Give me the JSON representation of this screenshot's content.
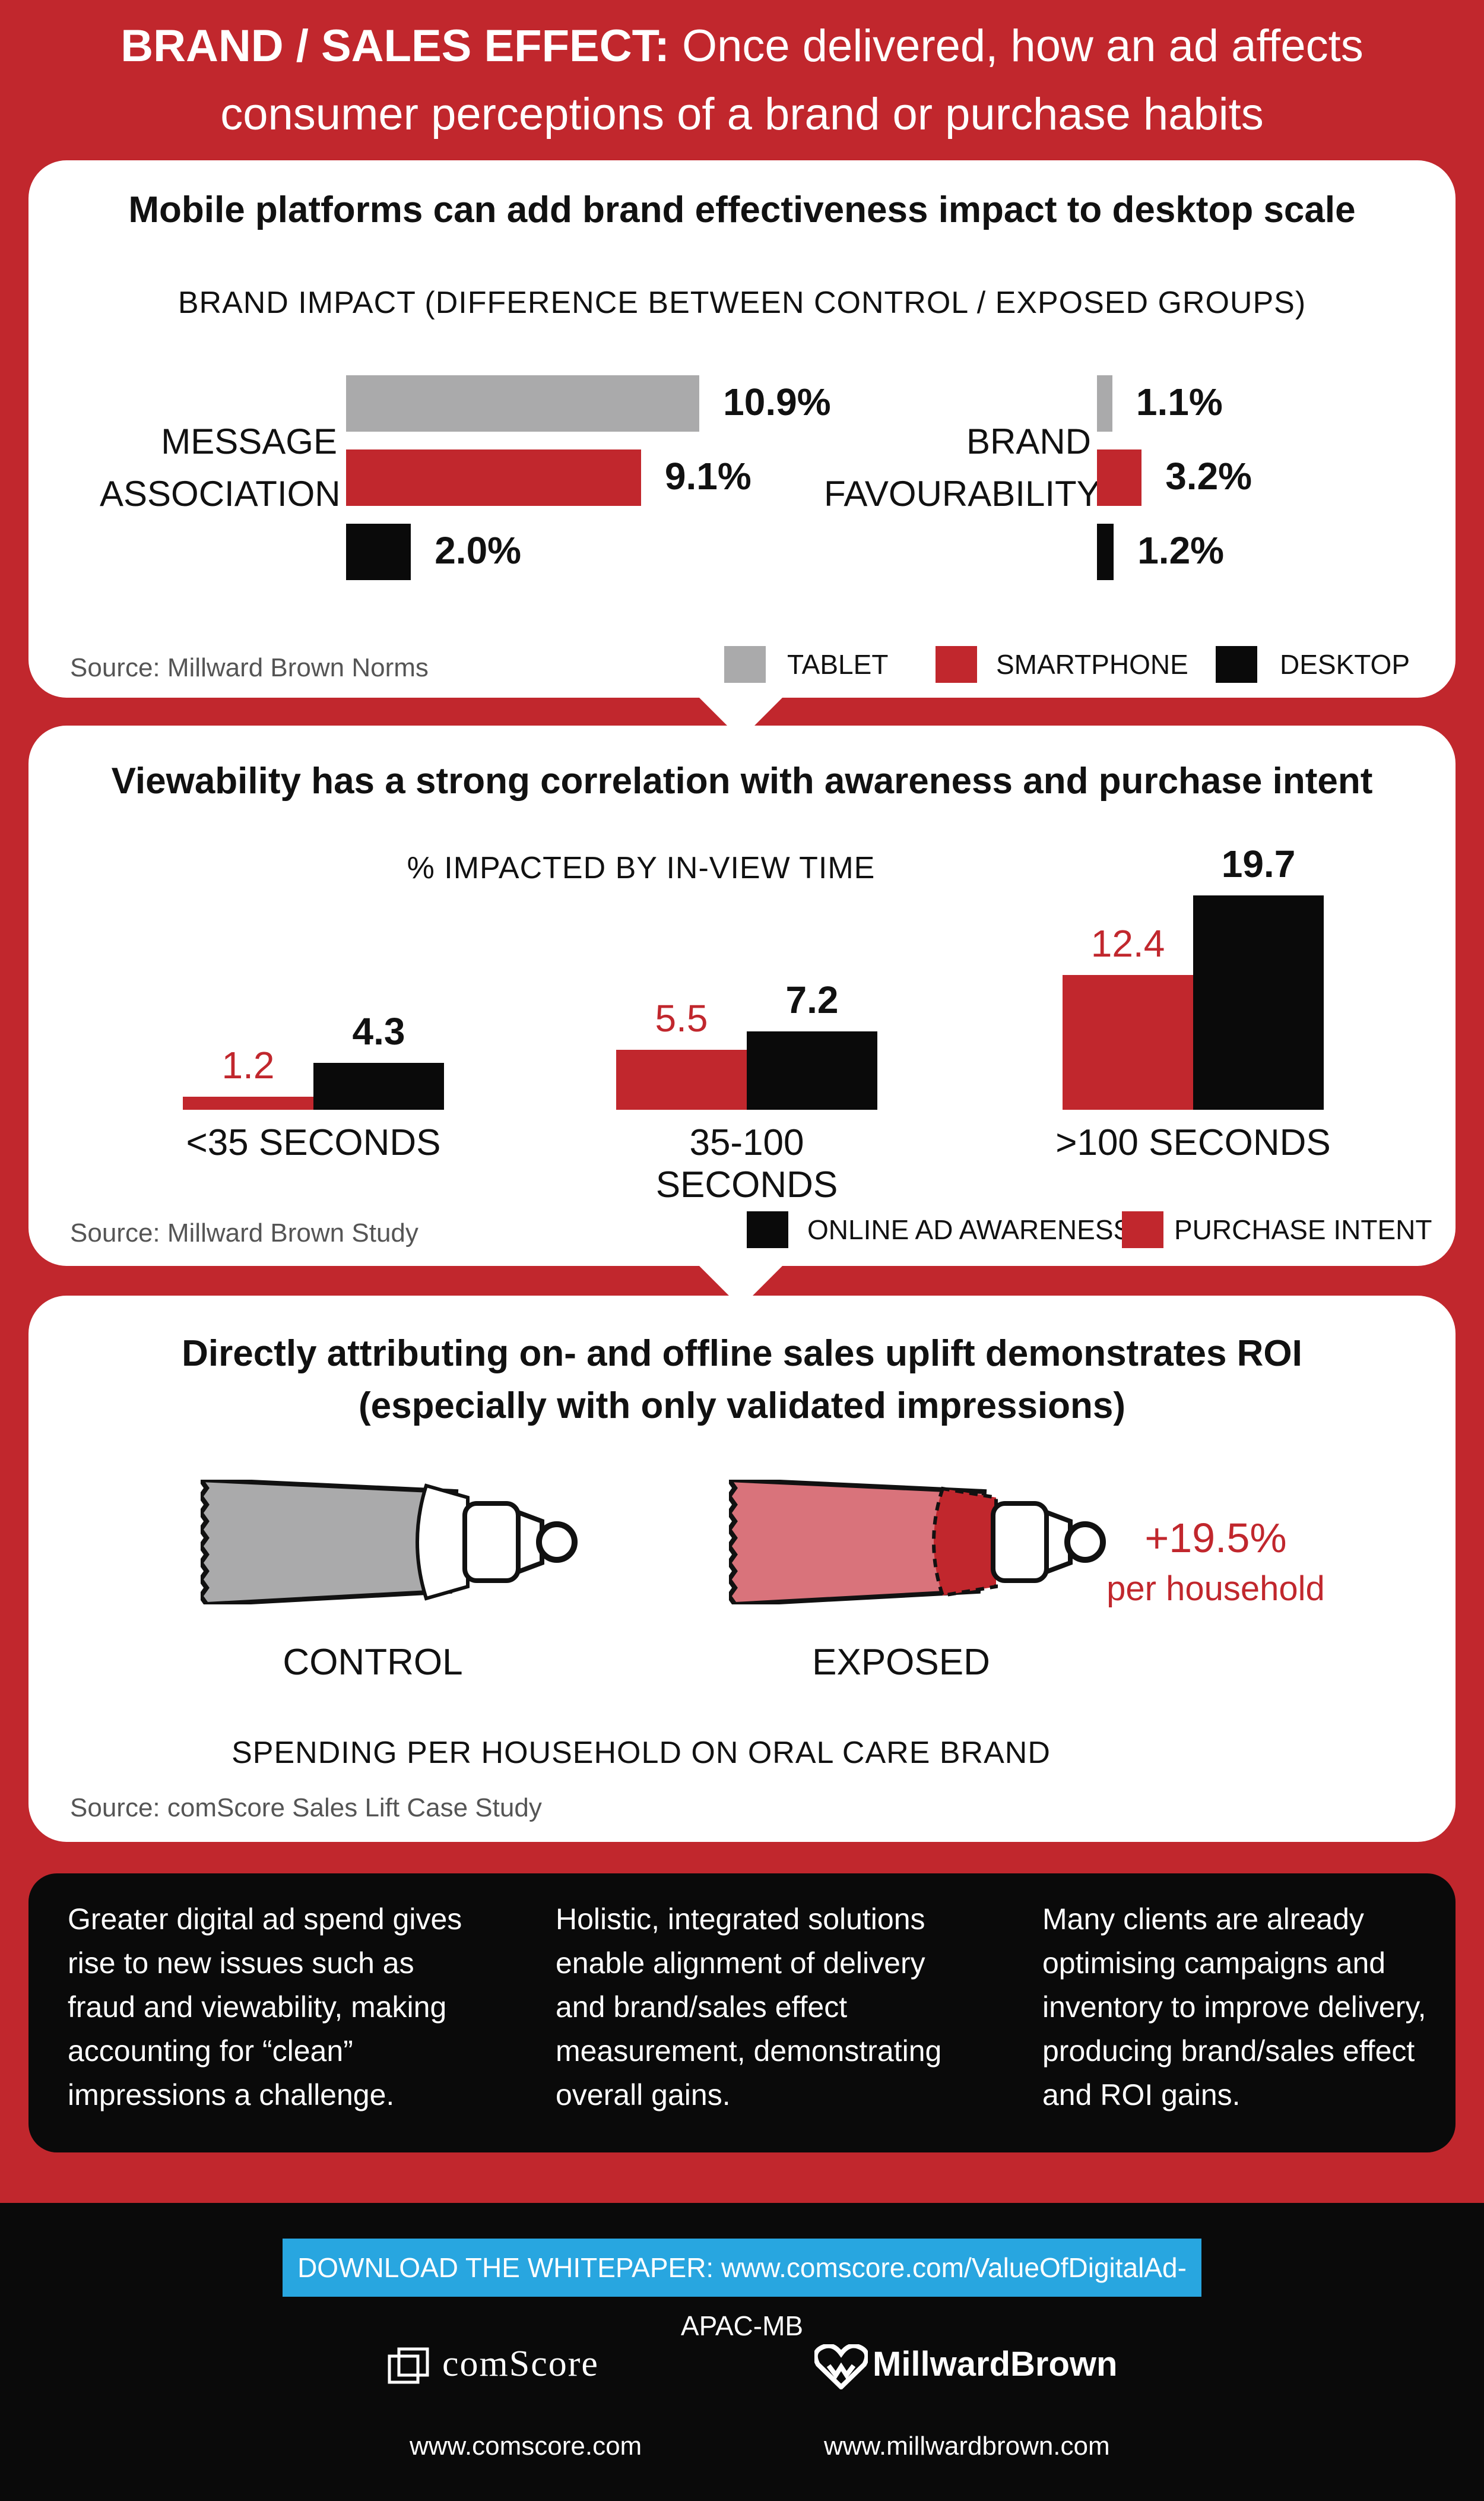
{
  "header": {
    "title_bold": "BRAND / SALES EFFECT:",
    "title_rest": " Once delivered, how an ad affects",
    "title_line2": "consumer perceptions of a brand or purchase habits"
  },
  "panel1": {
    "heading": "Mobile platforms can add brand effectiveness impact to desktop scale",
    "subtitle": "BRAND IMPACT (DIFFERENCE BETWEEN CONTROL / EXPOSED GROUPS)",
    "source": "Source: Millward Brown Norms",
    "group1_label_line1": "MESSAGE",
    "group1_label_line2": "ASSOCIATION",
    "group2_label_line1": "BRAND",
    "group2_label_line2": "FAVOURABILITY",
    "legend": [
      "TABLET",
      "SMARTPHONE",
      "DESKTOP"
    ]
  },
  "panel2": {
    "heading": "Viewability has a strong correlation with awareness and purchase intent",
    "subtitle": "% IMPACTED BY IN-VIEW TIME",
    "source": "Source: Millward Brown Study",
    "legend": [
      "ONLINE AD AWARENESS",
      "PURCHASE INTENT"
    ]
  },
  "panel3": {
    "heading_line1": "Directly attributing on- and offline sales uplift demonstrates ROI",
    "heading_line2": "(especially with only validated impressions)",
    "control_label": "CONTROL",
    "exposed_label": "EXPOSED",
    "uplift_value": "+19.5%",
    "uplift_unit": "per household",
    "caption": "SPENDING PER HOUSEHOLD ON ORAL CARE BRAND",
    "source": "Source: comScore Sales Lift Case Study"
  },
  "summary": [
    "Greater digital ad spend gives rise to new issues such as fraud and viewability, making accounting for “clean” impressions a challenge.",
    "Holistic, integrated solutions enable alignment of delivery and brand/sales effect measurement, demonstrating overall gains.",
    "Many clients are already optimising campaigns and inventory to improve delivery, producing brand/sales effect and ROI gains."
  ],
  "footer": {
    "download": "DOWNLOAD THE WHITEPAPER: www.comscore.com/ValueOfDigitalAd-APAC-MB",
    "logo1": "comScore",
    "logo2": "MillwardBrown",
    "url1": "www.comscore.com",
    "url2": "www.millwardbrown.com"
  },
  "colors": {
    "tablet": "#aaaaab",
    "smartphone": "#c1272d",
    "desktop": "#0a0a0a",
    "accent": "#c1272d",
    "download": "#28a6e0"
  },
  "chart_data": [
    {
      "type": "bar",
      "orientation": "horizontal",
      "subtitle": "BRAND IMPACT (DIFFERENCE BETWEEN CONTROL / EXPOSED GROUPS)",
      "categories": [
        "MESSAGE ASSOCIATION",
        "BRAND FAVOURABILITY"
      ],
      "series": [
        {
          "name": "TABLET",
          "values": [
            10.9,
            1.1
          ],
          "labels": [
            "10.9%",
            "1.1%"
          ]
        },
        {
          "name": "SMARTPHONE",
          "values": [
            9.1,
            3.2
          ],
          "labels": [
            "9.1%",
            "3.2%"
          ]
        },
        {
          "name": "DESKTOP",
          "values": [
            2.0,
            1.2
          ],
          "labels": [
            "2.0%",
            "1.2%"
          ]
        }
      ]
    },
    {
      "type": "bar",
      "subtitle": "% IMPACTED BY IN-VIEW TIME",
      "categories": [
        "<35 SECONDS",
        "35-100 SECONDS",
        ">100 SECONDS"
      ],
      "series": [
        {
          "name": "PURCHASE INTENT",
          "values": [
            1.2,
            5.5,
            12.4
          ],
          "labels": [
            "1.2",
            "5.5",
            "12.4"
          ]
        },
        {
          "name": "ONLINE AD AWARENESS",
          "values": [
            4.3,
            7.2,
            19.7
          ],
          "labels": [
            "4.3",
            "7.2",
            "19.7"
          ]
        }
      ]
    }
  ]
}
